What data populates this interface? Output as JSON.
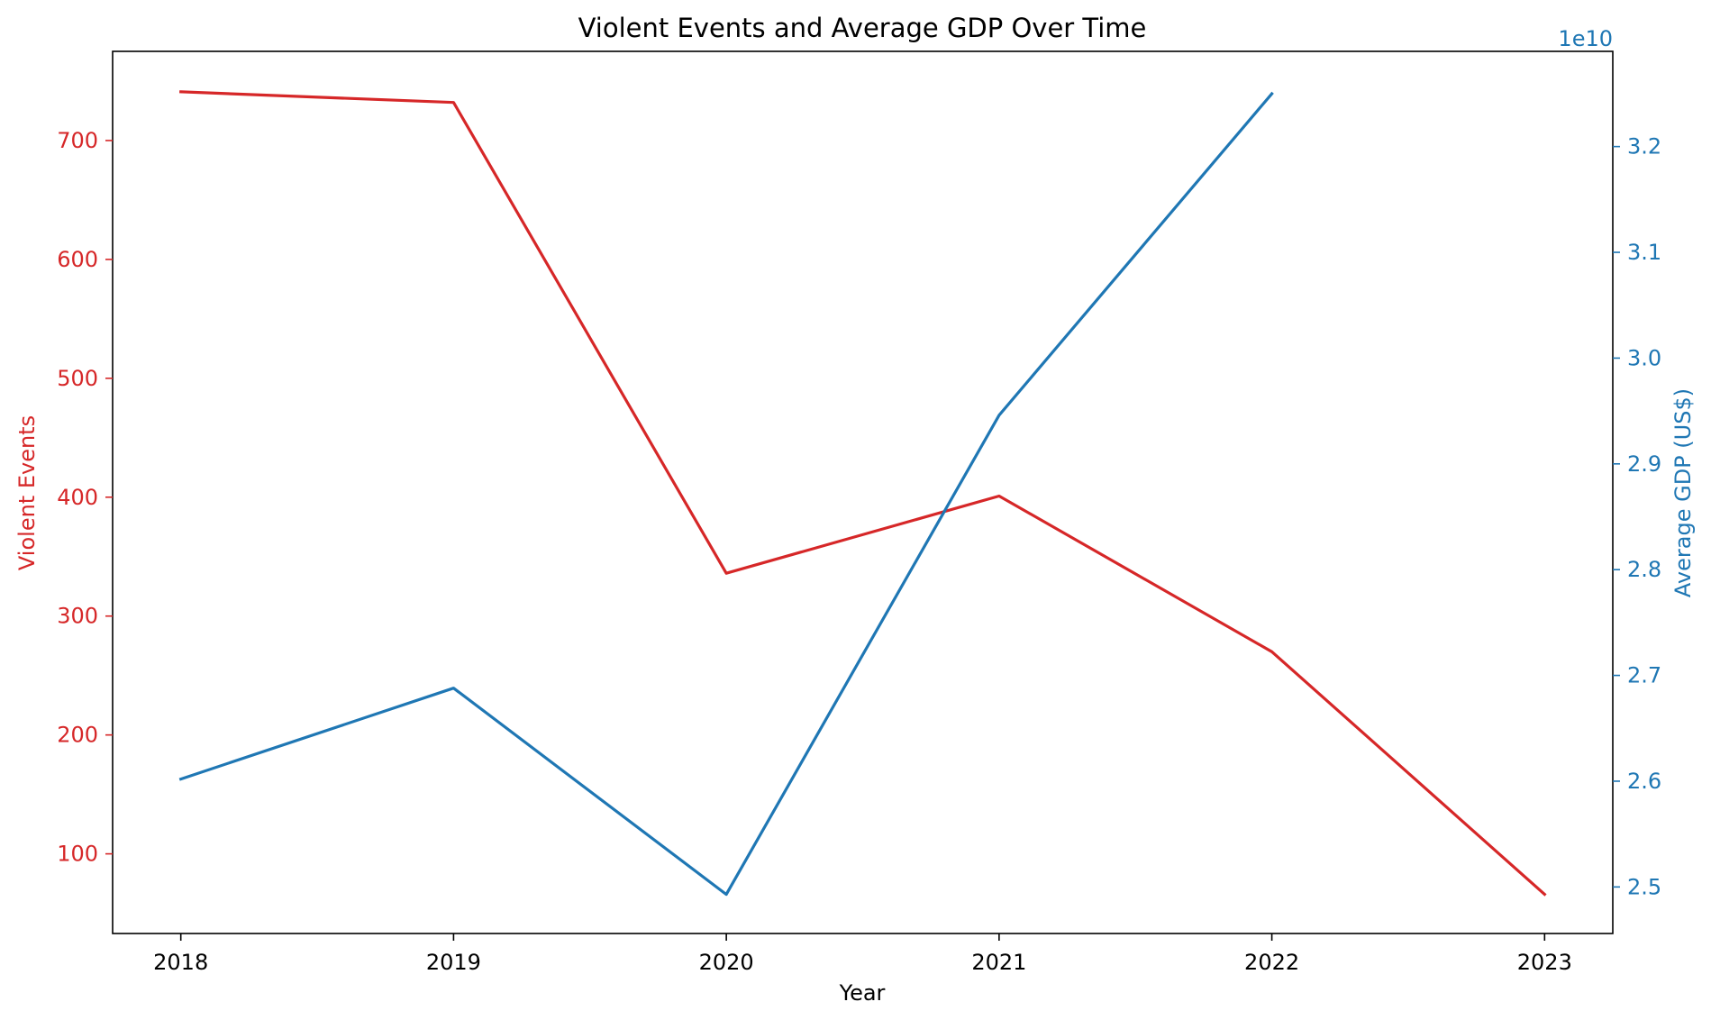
{
  "chart_data": {
    "type": "line",
    "title": "Violent Events and Average GDP Over Time",
    "xlabel": "Year",
    "x": [
      2018,
      2019,
      2020,
      2021,
      2022,
      2023
    ],
    "x_tick_labels": [
      "2018",
      "2019",
      "2020",
      "2021",
      "2022",
      "2023"
    ],
    "xlim": [
      2017.75,
      2023.25
    ],
    "grid": false,
    "left_axis": {
      "label": "Violent Events",
      "color": "#d62728",
      "ylim": [
        33,
        775
      ],
      "ticks": [
        100,
        200,
        300,
        400,
        500,
        600,
        700
      ],
      "tick_labels": [
        "100",
        "200",
        "300",
        "400",
        "500",
        "600",
        "700"
      ]
    },
    "right_axis": {
      "label": "Average GDP (US$)",
      "color": "#1f77b4",
      "offset_text": "1e10",
      "ylim": [
        2.456,
        3.29
      ],
      "ticks": [
        2.5,
        2.6,
        2.7,
        2.8,
        2.9,
        3.0,
        3.1,
        3.2
      ],
      "tick_labels": [
        "2.5",
        "2.6",
        "2.7",
        "2.8",
        "2.9",
        "3.0",
        "3.1",
        "3.2"
      ]
    },
    "series": [
      {
        "axis": "left",
        "color": "#d62728",
        "x": [
          2018,
          2019,
          2020,
          2021,
          2022,
          2023
        ],
        "values": [
          741,
          732,
          336,
          401,
          270,
          66
        ]
      },
      {
        "axis": "right",
        "color": "#1f77b4",
        "x": [
          2018,
          2019,
          2020,
          2021,
          2022
        ],
        "values": [
          2.602,
          2.688,
          2.493,
          2.946,
          3.25
        ]
      }
    ]
  }
}
